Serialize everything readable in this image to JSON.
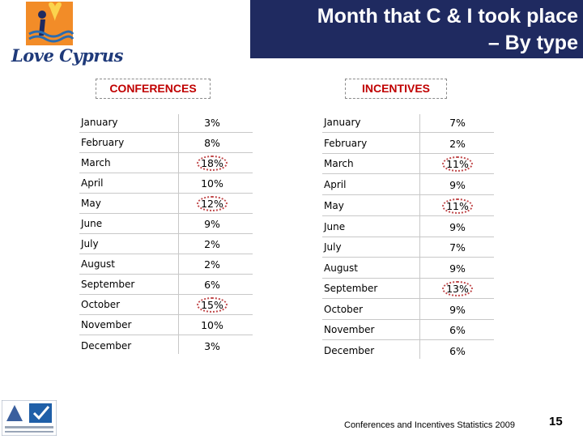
{
  "title": {
    "line1": "Month that C & I took place",
    "line2": "– By type"
  },
  "brand": {
    "logo_text": "Love Cyprus"
  },
  "conferences": {
    "label": "CONFERENCES",
    "rows": [
      {
        "month": "January",
        "value": "3%",
        "highlighted": false
      },
      {
        "month": "February",
        "value": "8%",
        "highlighted": false
      },
      {
        "month": "March",
        "value": "18%",
        "highlighted": true
      },
      {
        "month": "April",
        "value": "10%",
        "highlighted": false
      },
      {
        "month": "May",
        "value": "12%",
        "highlighted": true
      },
      {
        "month": "June",
        "value": "9%",
        "highlighted": false
      },
      {
        "month": "July",
        "value": "2%",
        "highlighted": false
      },
      {
        "month": "August",
        "value": "2%",
        "highlighted": false
      },
      {
        "month": "September",
        "value": "6%",
        "highlighted": false
      },
      {
        "month": "October",
        "value": "15%",
        "highlighted": true
      },
      {
        "month": "November",
        "value": "10%",
        "highlighted": false
      },
      {
        "month": "December",
        "value": "3%",
        "highlighted": false
      }
    ]
  },
  "incentives": {
    "label": "INCENTIVES",
    "rows": [
      {
        "month": "January",
        "value": "7%",
        "highlighted": false
      },
      {
        "month": "February",
        "value": "2%",
        "highlighted": false
      },
      {
        "month": "March",
        "value": "11%",
        "highlighted": true
      },
      {
        "month": "April",
        "value": "9%",
        "highlighted": false
      },
      {
        "month": "May",
        "value": "11%",
        "highlighted": true
      },
      {
        "month": "June",
        "value": "9%",
        "highlighted": false
      },
      {
        "month": "July",
        "value": "7%",
        "highlighted": false
      },
      {
        "month": "August",
        "value": "9%",
        "highlighted": false
      },
      {
        "month": "September",
        "value": "13%",
        "highlighted": true
      },
      {
        "month": "October",
        "value": "9%",
        "highlighted": false
      },
      {
        "month": "November",
        "value": "6%",
        "highlighted": false
      },
      {
        "month": "December",
        "value": "6%",
        "highlighted": false
      }
    ]
  },
  "footer": {
    "text": "Conferences and Incentives Statistics 2009",
    "page_number": "15"
  },
  "colors": {
    "title_bg": "#1f2a60",
    "label_red": "#c00000",
    "highlight": "#c0484a"
  }
}
